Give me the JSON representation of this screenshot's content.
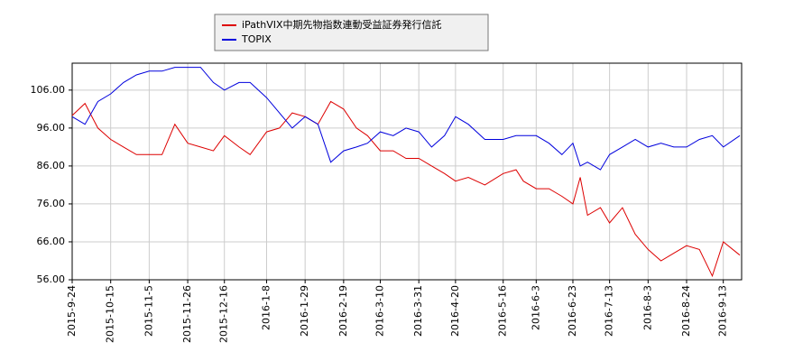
{
  "chart_data": {
    "type": "line",
    "x": [
      "2015-9-24",
      "2015-10-1",
      "2015-10-8",
      "2015-10-15",
      "2015-10-22",
      "2015-10-29",
      "2015-11-5",
      "2015-11-12",
      "2015-11-19",
      "2015-11-26",
      "2015-12-3",
      "2015-12-10",
      "2015-12-16",
      "2015-12-24",
      "2015-12-30",
      "2016-1-8",
      "2016-1-15",
      "2016-1-22",
      "2016-1-29",
      "2016-2-5",
      "2016-2-12",
      "2016-2-19",
      "2016-2-26",
      "2016-3-3",
      "2016-3-10",
      "2016-3-17",
      "2016-3-24",
      "2016-3-31",
      "2016-4-7",
      "2016-4-14",
      "2016-4-20",
      "2016-4-27",
      "2016-5-6",
      "2016-5-16",
      "2016-5-23",
      "2016-5-27",
      "2016-6-3",
      "2016-6-10",
      "2016-6-17",
      "2016-6-23",
      "2016-6-27",
      "2016-7-1",
      "2016-7-8",
      "2016-7-13",
      "2016-7-20",
      "2016-7-27",
      "2016-8-3",
      "2016-8-10",
      "2016-8-17",
      "2016-8-24",
      "2016-8-31",
      "2016-9-7",
      "2016-9-13",
      "2016-9-22"
    ],
    "series": [
      {
        "name": "iPathVIX中期先物指数連動受益証券発行信託",
        "color": "#dd0000",
        "values": [
          99.3,
          102.5,
          96,
          93,
          91,
          89,
          89,
          89,
          97,
          92,
          91,
          90,
          94,
          91,
          89,
          95,
          96,
          100,
          99,
          97,
          103,
          101,
          96,
          94,
          90,
          90,
          88,
          88,
          86,
          84,
          82,
          83,
          81,
          84,
          85,
          82,
          80,
          80,
          78,
          76,
          83,
          73,
          75,
          71,
          75,
          68,
          64,
          61,
          63,
          65,
          64,
          57,
          66,
          62.5
        ]
      },
      {
        "name": "TOPIX",
        "color": "#0000dd",
        "values": [
          99,
          97,
          103,
          105,
          108,
          110,
          111,
          111,
          112,
          112,
          112,
          108,
          106,
          108,
          108,
          104,
          100,
          96,
          99,
          97,
          87,
          90,
          91,
          92,
          95,
          94,
          96,
          95,
          91,
          94,
          99,
          97,
          93,
          93,
          94,
          94,
          94,
          92,
          89,
          92,
          86,
          87,
          85,
          89,
          91,
          93,
          91,
          92,
          91,
          91,
          93,
          94,
          91,
          94
        ]
      }
    ],
    "xlim": [
      "2015-9-24",
      "2016-9-23"
    ],
    "xticks": [
      "2015-9-24",
      "2015-10-15",
      "2015-11-5",
      "2015-11-26",
      "2015-12-16",
      "2016-1-8",
      "2016-1-29",
      "2016-2-19",
      "2016-3-10",
      "2016-3-31",
      "2016-4-20",
      "2016-5-16",
      "2016-6-3",
      "2016-6-23",
      "2016-7-13",
      "2016-8-3",
      "2016-8-24",
      "2016-9-13"
    ],
    "ylim": [
      56,
      113.1
    ],
    "yticks": [
      {
        "value": 56,
        "label": "56.00"
      },
      {
        "value": 66,
        "label": "66.00"
      },
      {
        "value": 76,
        "label": "76.00"
      },
      {
        "value": 86,
        "label": "86.00"
      },
      {
        "value": 96,
        "label": "96.00"
      },
      {
        "value": 106,
        "label": "106.00"
      }
    ],
    "grid": true,
    "legend": "top"
  }
}
